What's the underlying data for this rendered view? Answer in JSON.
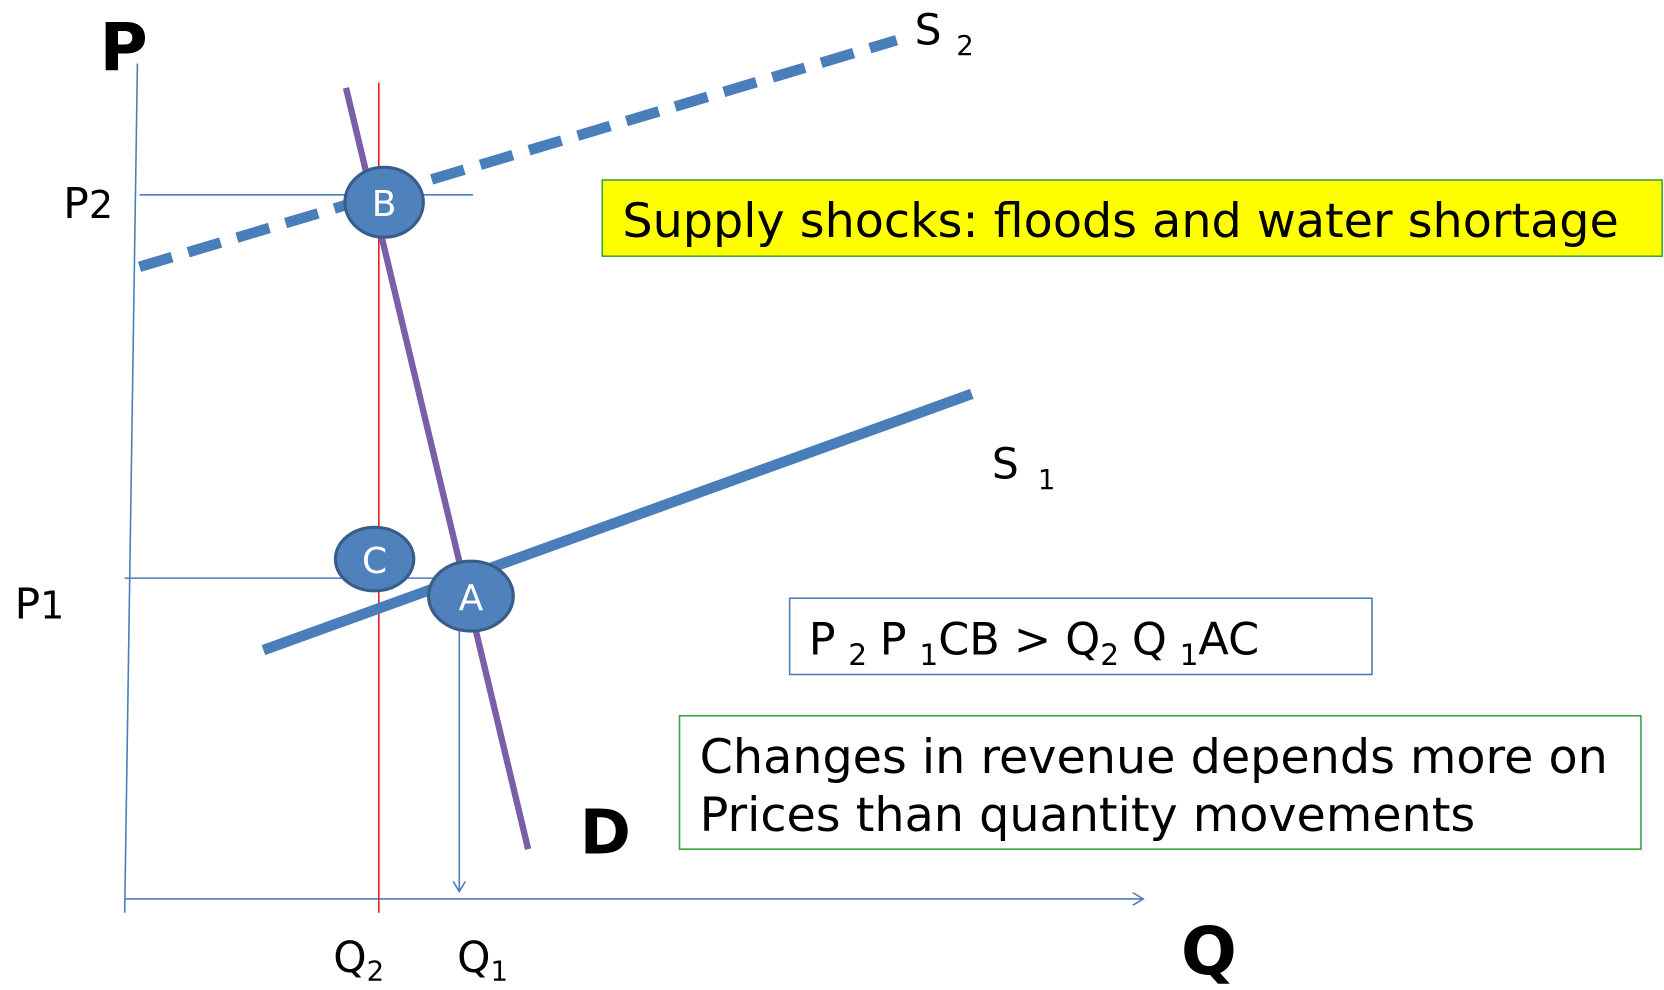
{
  "axes": {
    "price": "P",
    "quantity": "Q"
  },
  "price_labels": [
    {
      "main": "P",
      "sub": "2"
    },
    {
      "main": "P",
      "sub": "1"
    }
  ],
  "quantity_labels": [
    {
      "main": "Q",
      "sub": "2"
    },
    {
      "main": "Q",
      "sub": "1"
    }
  ],
  "curves": {
    "supply_2": {
      "main": "S",
      "sub": "2"
    },
    "supply_1": {
      "main": "S",
      "sub": "1"
    },
    "demand": "D"
  },
  "points": {
    "b": "B",
    "c": "C",
    "a": "A"
  },
  "boxes": {
    "shock": "Supply shocks: floods and water shortage",
    "formula": [
      {
        "main": "P",
        "sub": "2"
      },
      {
        "main": "P",
        "sub": "1"
      },
      {
        "main": "CB  >   Q",
        "sub": "2"
      },
      {
        "main": "Q",
        "sub": "1"
      },
      {
        "main": "AC",
        "sub": null
      }
    ],
    "note": [
      "Changes in revenue depends more on",
      "Prices  than quantity movements"
    ]
  }
}
